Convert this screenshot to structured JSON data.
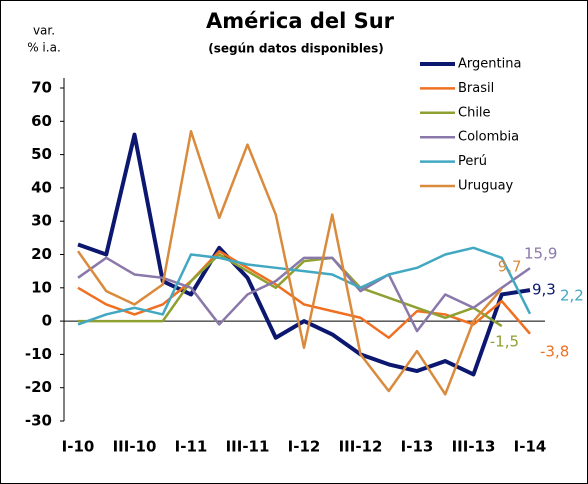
{
  "chart_data": {
    "type": "line",
    "title": "América del Sur",
    "subtitle": "(según datos disponibles)",
    "y_label_lines": [
      "var.",
      "% i.a."
    ],
    "categories": [
      "I-10",
      null,
      "III-10",
      null,
      "I-11",
      null,
      "III-11",
      null,
      "I-12",
      null,
      "III-12",
      null,
      "I-13",
      null,
      "III-13",
      null,
      "I-14"
    ],
    "ylim": [
      -30,
      70
    ],
    "yticks": [
      -30,
      -20,
      -10,
      0,
      10,
      20,
      30,
      40,
      50,
      60,
      70
    ],
    "legend": "upper right",
    "series": [
      {
        "name": "Argentina",
        "color": "#0c1870",
        "values": [
          23,
          20,
          56,
          12,
          8,
          22,
          13,
          -5,
          0,
          -4,
          -10,
          -13,
          -15,
          -12,
          -16,
          8,
          9.3
        ],
        "value_labels": [
          null,
          null,
          null,
          null,
          null,
          null,
          null,
          null,
          null,
          null,
          null,
          null,
          null,
          null,
          null,
          null,
          "9,3"
        ]
      },
      {
        "name": "Brasil",
        "color": "#f07022",
        "values": [
          10,
          5,
          2,
          5,
          12,
          21,
          16,
          11,
          5,
          3,
          1,
          -5,
          3,
          2,
          -1,
          6,
          -3.8
        ],
        "value_labels": [
          null,
          null,
          null,
          null,
          null,
          null,
          null,
          null,
          null,
          null,
          null,
          null,
          null,
          null,
          null,
          null,
          "-3,8"
        ]
      },
      {
        "name": "Chile",
        "color": "#8fa032",
        "values": [
          0,
          0,
          0,
          0,
          12,
          20,
          15,
          10,
          18,
          19,
          10,
          7,
          4,
          1,
          4,
          -1.5,
          null
        ],
        "value_labels": [
          null,
          null,
          null,
          null,
          null,
          null,
          null,
          null,
          null,
          null,
          null,
          null,
          null,
          null,
          null,
          "-1,5",
          null
        ]
      },
      {
        "name": "Colombia",
        "color": "#8a78aa",
        "values": [
          13,
          19,
          14,
          13,
          10,
          -1,
          8,
          12,
          19,
          19,
          9,
          14,
          -3,
          8,
          4,
          10,
          15.9
        ],
        "value_labels": [
          null,
          null,
          null,
          null,
          null,
          null,
          null,
          null,
          null,
          null,
          null,
          null,
          null,
          null,
          null,
          null,
          "15,9"
        ]
      },
      {
        "name": "Perú",
        "color": "#42a8c2",
        "values": [
          -1,
          2,
          4,
          2,
          20,
          19,
          17,
          16,
          15,
          14,
          10,
          14,
          16,
          20,
          22,
          19,
          2.2
        ],
        "value_labels": [
          null,
          null,
          null,
          null,
          null,
          null,
          null,
          null,
          null,
          null,
          null,
          null,
          null,
          null,
          null,
          null,
          "2,2"
        ]
      },
      {
        "name": "Uruguay",
        "color": "#d98a3c",
        "values": [
          21,
          9,
          5,
          11,
          57,
          31,
          53,
          32,
          -8,
          32,
          -10,
          -21,
          -9,
          -22,
          0,
          9.7,
          null
        ],
        "value_labels": [
          null,
          null,
          null,
          null,
          null,
          null,
          null,
          null,
          null,
          null,
          null,
          null,
          null,
          null,
          null,
          "9,7",
          null
        ]
      }
    ]
  }
}
